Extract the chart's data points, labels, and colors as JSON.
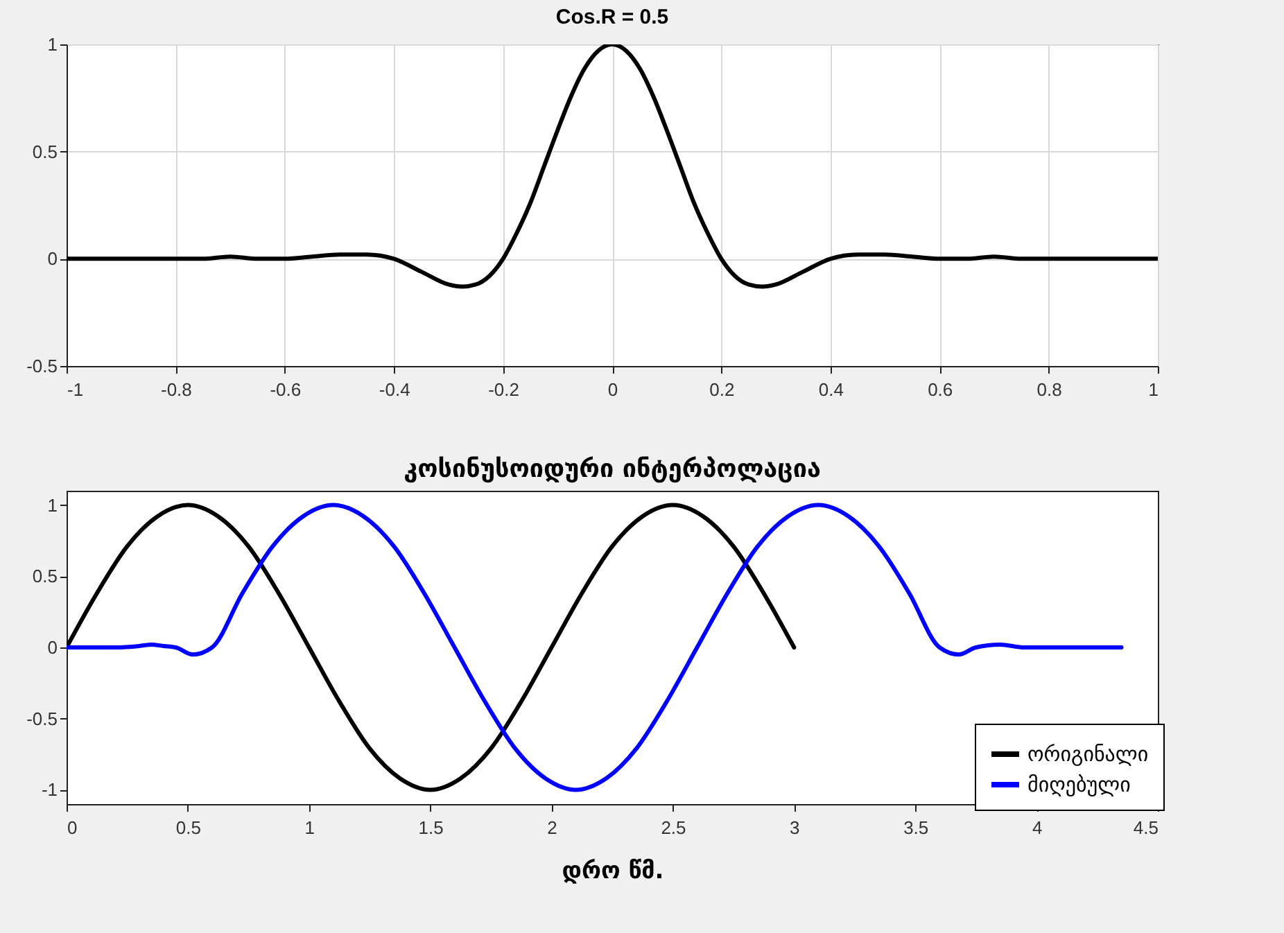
{
  "chart_data": [
    {
      "type": "line",
      "title": "Cos.R = 0.5",
      "x": [
        -1,
        -0.95,
        -0.9,
        -0.85,
        -0.8,
        -0.75,
        -0.7,
        -0.65,
        -0.6,
        -0.55,
        -0.5,
        -0.45,
        -0.4,
        -0.35,
        -0.3,
        -0.275,
        -0.25,
        -0.2,
        -0.175,
        -0.15,
        -0.125,
        -0.1,
        -0.075,
        -0.05,
        0,
        0.05,
        0.075,
        0.1,
        0.125,
        0.15,
        0.175,
        0.2,
        0.25,
        0.275,
        0.3,
        0.35,
        0.4,
        0.45,
        0.5,
        0.55,
        0.6,
        0.65,
        0.7,
        0.75,
        0.8,
        0.85,
        0.9,
        0.95,
        1
      ],
      "series": [
        {
          "color": "#000000",
          "values": [
            0,
            0,
            0,
            0,
            0,
            0,
            0.01,
            0,
            0,
            0.01,
            0.02,
            0.02,
            0,
            -0.06,
            -0.12,
            -0.13,
            -0.12,
            0,
            0.12,
            0.26,
            0.43,
            0.6,
            0.76,
            0.89,
            1,
            0.89,
            0.76,
            0.6,
            0.43,
            0.26,
            0.12,
            0,
            -0.12,
            -0.13,
            -0.12,
            -0.06,
            0,
            0.02,
            0.02,
            0.01,
            0,
            0,
            0.01,
            0,
            0,
            0,
            0,
            0,
            0
          ]
        }
      ],
      "xlim": [
        -1,
        1
      ],
      "xticks": [
        -1,
        -0.8,
        -0.6,
        -0.4,
        -0.2,
        0,
        0.2,
        0.4,
        0.6,
        0.8,
        1
      ],
      "ylim": [
        -0.5,
        1
      ],
      "yticks": [
        -0.5,
        0,
        0.5,
        1
      ],
      "grid": true,
      "marker": "none",
      "line_style": "solid"
    },
    {
      "type": "line",
      "title": "კოსინუსოიდური ინტერპოლაცია",
      "xlabel": "დრო წმ.",
      "series": [
        {
          "name": "ორიგინალი",
          "color": "#000000",
          "x": [
            0,
            0.125,
            0.25,
            0.375,
            0.5,
            0.625,
            0.75,
            0.875,
            1,
            1.125,
            1.25,
            1.375,
            1.5,
            1.625,
            1.75,
            1.875,
            2,
            2.125,
            2.25,
            2.375,
            2.5,
            2.625,
            2.75,
            2.875,
            3
          ],
          "values": [
            0,
            0.38,
            0.71,
            0.92,
            1,
            0.92,
            0.71,
            0.38,
            0,
            -0.38,
            -0.71,
            -0.92,
            -1,
            -0.92,
            -0.71,
            -0.38,
            0,
            0.38,
            0.71,
            0.92,
            1,
            0.92,
            0.71,
            0.38,
            0
          ]
        },
        {
          "name": "მიღებული",
          "color": "#0000ff",
          "x": [
            0,
            0.1,
            0.2,
            0.3,
            0.35,
            0.4,
            0.45,
            0.52,
            0.6,
            0.725,
            0.85,
            0.975,
            1.1,
            1.225,
            1.35,
            1.475,
            1.6,
            1.725,
            1.85,
            1.975,
            2.1,
            2.225,
            2.35,
            2.475,
            2.6,
            2.725,
            2.85,
            2.975,
            3.1,
            3.225,
            3.35,
            3.475,
            3.6,
            3.68,
            3.75,
            3.85,
            3.95,
            4.1,
            4.35
          ],
          "values": [
            0,
            0,
            0,
            0.01,
            0.02,
            0.01,
            0,
            -0.05,
            0,
            0.38,
            0.71,
            0.92,
            1,
            0.92,
            0.71,
            0.38,
            0,
            -0.38,
            -0.71,
            -0.92,
            -1,
            -0.92,
            -0.71,
            -0.38,
            0,
            0.38,
            0.71,
            0.92,
            1,
            0.92,
            0.71,
            0.38,
            0,
            -0.05,
            0,
            0.02,
            0,
            0,
            0
          ]
        }
      ],
      "xlim": [
        0,
        4.5
      ],
      "xticks": [
        0,
        0.5,
        1,
        1.5,
        2,
        2.5,
        3,
        3.5,
        4,
        4.5
      ],
      "ylim": [
        -1.1,
        1.1
      ],
      "yticks": [
        -1,
        -0.5,
        0,
        0.5,
        1
      ],
      "legend": "bottom right",
      "marker": "none",
      "line_style": "solid"
    }
  ]
}
